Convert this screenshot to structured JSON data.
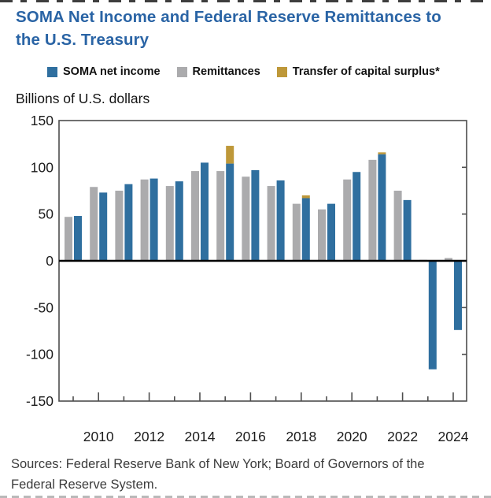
{
  "title": "SOMA Net Income and Federal Reserve Remittances to the U.S. Treasury",
  "axis_units_label": "Billions of U.S. dollars",
  "legend": [
    {
      "label": "SOMA net income",
      "color": "#2F6F9F"
    },
    {
      "label": "Remittances",
      "color": "#ABABAD"
    },
    {
      "label": "Transfer of capital surplus*",
      "color": "#BE9839"
    }
  ],
  "sources": {
    "line1": "Sources: Federal Reserve Bank of New York; Board of Governors of the",
    "line2": "Federal Reserve System."
  },
  "colors": {
    "title_blue": "#2A64A5",
    "soma_blue": "#2F6F9F",
    "remittances_gray": "#ABABAD",
    "surplus_gold": "#BE9839",
    "frame_stroke": "#4d4d4d",
    "zero_line": "#000000",
    "tick_label": "#1a1a1a"
  },
  "chart_data": {
    "type": "bar",
    "title": "SOMA Net Income and Federal Reserve Remittances to the U.S. Treasury",
    "xlabel": "",
    "ylabel": "Billions of U.S. dollars",
    "ylim": [
      -150,
      150
    ],
    "yticks": [
      150,
      100,
      50,
      0,
      -50,
      -100,
      -150
    ],
    "grid": false,
    "legend_position": "top",
    "categories": [
      "2009",
      "2010",
      "2011",
      "2012",
      "2013",
      "2014",
      "2015",
      "2016",
      "2017",
      "2018",
      "2019",
      "2020",
      "2021",
      "2022",
      "2023",
      "2024"
    ],
    "x_axis_labeled_years": [
      "2010",
      "2012",
      "2014",
      "2016",
      "2018",
      "2020",
      "2022",
      "2024"
    ],
    "series": [
      {
        "name": "Remittances",
        "color": "#ABABAD",
        "values": [
          47,
          79,
          75,
          87,
          80,
          96,
          96,
          90,
          80,
          61,
          55,
          87,
          108,
          75,
          1,
          3
        ]
      },
      {
        "name": "SOMA net income",
        "color": "#2F6F9F",
        "values": [
          48,
          73,
          82,
          88,
          85,
          105,
          104,
          97,
          86,
          67,
          61,
          95,
          114,
          65,
          -116,
          -74
        ]
      },
      {
        "name": "Transfer of capital surplus*",
        "color": "#BE9839",
        "stacked_on": "SOMA net income",
        "values": [
          0,
          0,
          0,
          0,
          0,
          0,
          19,
          0,
          0,
          3,
          0,
          0,
          2,
          0,
          0,
          0
        ]
      }
    ]
  }
}
